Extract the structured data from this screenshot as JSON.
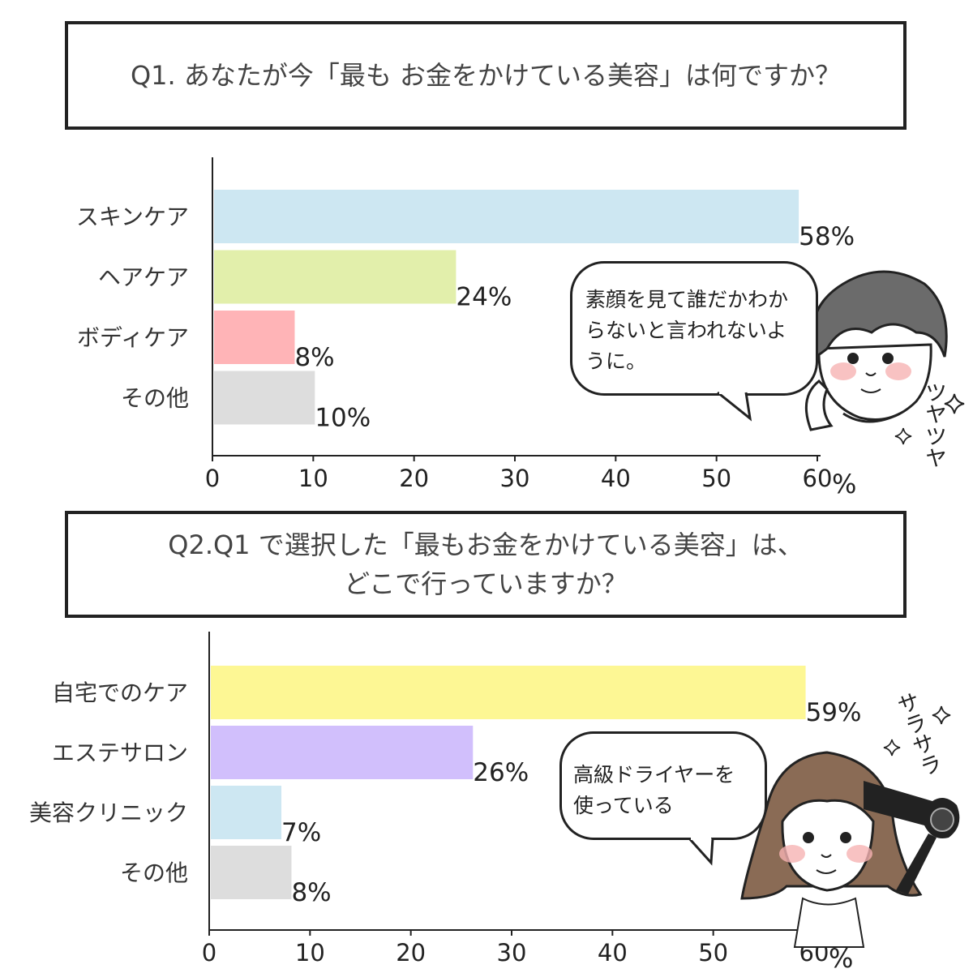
{
  "q1": {
    "title": "Q1. あなたが今「最も お金をかけている美容」は何ですか？"
  },
  "q2": {
    "title_line1": "Q2.Q1 で選択した「最もお金をかけている美容」は、",
    "title_line2": "どこで行っていますか？"
  },
  "chart_data": [
    {
      "type": "bar",
      "orientation": "horizontal",
      "categories": [
        "スキンケア",
        "ヘアケア",
        "ボディケア",
        "その他"
      ],
      "values": [
        58,
        24,
        8,
        10
      ],
      "value_labels": [
        "58%",
        "24%",
        "8%",
        "10%"
      ],
      "colors": [
        "#cde7f2",
        "#e2efab",
        "#ffb4b7",
        "#dddddd"
      ],
      "xlim": [
        0,
        60
      ],
      "ticks": [
        "0",
        "10",
        "20",
        "30",
        "40",
        "50",
        "60"
      ],
      "unit": "%",
      "grid": false
    },
    {
      "type": "bar",
      "orientation": "horizontal",
      "categories": [
        "自宅でのケア",
        "エステサロン",
        "美容クリニック",
        "その他"
      ],
      "values": [
        59,
        26,
        7,
        8
      ],
      "value_labels": [
        "59%",
        "26%",
        "7%",
        "8%"
      ],
      "colors": [
        "#fdf794",
        "#d1bffc",
        "#cde7f2",
        "#dddddd"
      ],
      "xlim": [
        0,
        60
      ],
      "ticks": [
        "0",
        "10",
        "20",
        "30",
        "40",
        "50",
        "60"
      ],
      "unit": "%",
      "grid": false
    }
  ],
  "bubble1": {
    "text": "素顔を見て誰だかわからないと言われないように。"
  },
  "bubble2": {
    "text_line1": "高級ドライヤーを",
    "text_line2": "使っている"
  },
  "sfx1": "ツヤツヤ",
  "sfx2": "サラサラ",
  "icons": [
    "man-face-illustration",
    "woman-hairdryer-illustration",
    "sparkle-icon"
  ]
}
